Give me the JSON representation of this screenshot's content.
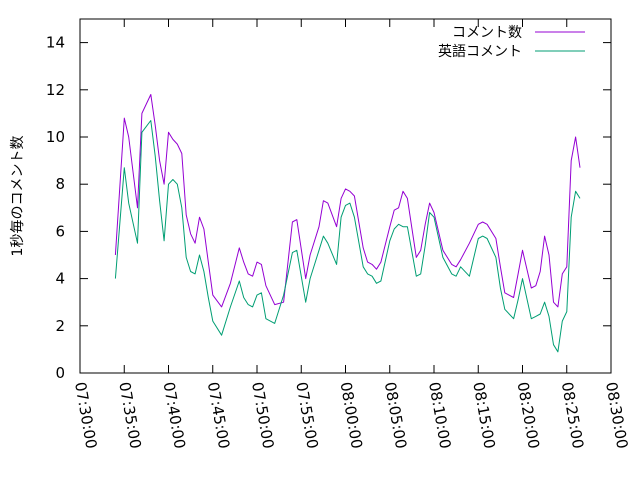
{
  "chart_data": {
    "type": "line",
    "ylabel": "1秒毎のコメント数",
    "xlabel": "",
    "title": "",
    "xlim": [
      "07:30:00",
      "08:30:00"
    ],
    "ylim": [
      0,
      15
    ],
    "xticks": [
      "07:30:00",
      "07:35:00",
      "07:40:00",
      "07:45:00",
      "07:50:00",
      "07:55:00",
      "08:00:00",
      "08:05:00",
      "08:10:00",
      "08:15:00",
      "08:20:00",
      "08:25:00",
      "08:30:00"
    ],
    "yticks": [
      0,
      2,
      4,
      6,
      8,
      10,
      12,
      14
    ],
    "grid": false,
    "legend": "top-right",
    "x": [
      "07:34:00",
      "07:35:00",
      "07:35:30",
      "07:36:30",
      "07:37:00",
      "07:38:00",
      "07:38:30",
      "07:39:00",
      "07:39:30",
      "07:40:00",
      "07:40:30",
      "07:41:00",
      "07:41:30",
      "07:42:00",
      "07:42:30",
      "07:43:00",
      "07:43:30",
      "07:44:00",
      "07:44:30",
      "07:45:00",
      "07:46:00",
      "07:47:00",
      "07:48:00",
      "07:48:30",
      "07:49:00",
      "07:49:30",
      "07:50:00",
      "07:50:30",
      "07:51:00",
      "07:52:00",
      "07:53:00",
      "07:54:00",
      "07:54:30",
      "07:55:30",
      "07:56:00",
      "07:57:00",
      "07:57:30",
      "07:58:00",
      "07:59:00",
      "07:59:30",
      "08:00:00",
      "08:00:30",
      "08:01:00",
      "08:02:00",
      "08:02:30",
      "08:03:00",
      "08:03:30",
      "08:04:00",
      "08:05:00",
      "08:05:30",
      "08:06:00",
      "08:06:30",
      "08:07:00",
      "08:08:00",
      "08:08:30",
      "08:09:00",
      "08:09:30",
      "08:10:00",
      "08:11:00",
      "08:12:00",
      "08:12:30",
      "08:13:00",
      "08:14:00",
      "08:15:00",
      "08:15:30",
      "08:16:00",
      "08:17:00",
      "08:17:30",
      "08:18:00",
      "08:19:00",
      "08:19:30",
      "08:20:00",
      "08:21:00",
      "08:21:30",
      "08:22:00",
      "08:22:30",
      "08:23:00",
      "08:23:30",
      "08:24:00",
      "08:24:30",
      "08:25:00",
      "08:25:30",
      "08:26:00",
      "08:26:30"
    ],
    "series": [
      {
        "name": "コメント数",
        "color": "#9400d3",
        "values": [
          5.0,
          10.8,
          10.0,
          7.0,
          11.0,
          11.8,
          10.5,
          9.0,
          8.0,
          10.2,
          9.9,
          9.7,
          9.3,
          6.7,
          5.9,
          5.5,
          6.6,
          6.1,
          4.7,
          3.3,
          2.8,
          3.8,
          5.3,
          4.7,
          4.2,
          4.1,
          4.7,
          4.6,
          3.7,
          2.9,
          3.0,
          6.4,
          6.5,
          4.0,
          5.0,
          6.2,
          7.3,
          7.2,
          6.2,
          7.4,
          7.8,
          7.7,
          7.5,
          5.3,
          4.7,
          4.6,
          4.4,
          4.7,
          6.2,
          6.9,
          7.0,
          7.7,
          7.4,
          4.9,
          5.2,
          6.3,
          7.2,
          6.8,
          5.2,
          4.6,
          4.5,
          4.8,
          5.5,
          6.3,
          6.4,
          6.3,
          5.7,
          4.5,
          3.4,
          3.2,
          4.2,
          5.2,
          3.6,
          3.7,
          4.3,
          5.8,
          5.0,
          3.0,
          2.8,
          4.2,
          4.5,
          9.0,
          10.0,
          8.7
        ]
      },
      {
        "name": "英語コメント",
        "color": "#009e73",
        "values": [
          4.0,
          8.7,
          7.2,
          5.5,
          10.2,
          10.7,
          9.2,
          7.3,
          5.6,
          8.0,
          8.2,
          8.0,
          7.0,
          4.9,
          4.3,
          4.2,
          5.0,
          4.3,
          3.2,
          2.2,
          1.6,
          2.8,
          3.9,
          3.2,
          2.9,
          2.8,
          3.3,
          3.4,
          2.3,
          2.1,
          3.3,
          5.1,
          5.2,
          3.0,
          4.0,
          5.2,
          5.8,
          5.5,
          4.6,
          6.6,
          7.1,
          7.2,
          6.6,
          4.5,
          4.2,
          4.1,
          3.8,
          3.9,
          5.6,
          6.1,
          6.3,
          6.2,
          6.2,
          4.1,
          4.2,
          5.4,
          6.8,
          6.6,
          4.9,
          4.2,
          4.1,
          4.5,
          4.1,
          5.7,
          5.8,
          5.7,
          4.9,
          3.6,
          2.7,
          2.3,
          3.1,
          4.0,
          2.3,
          2.4,
          2.5,
          3.0,
          2.4,
          1.2,
          0.9,
          2.2,
          2.6,
          6.6,
          7.7,
          7.4
        ]
      }
    ]
  }
}
